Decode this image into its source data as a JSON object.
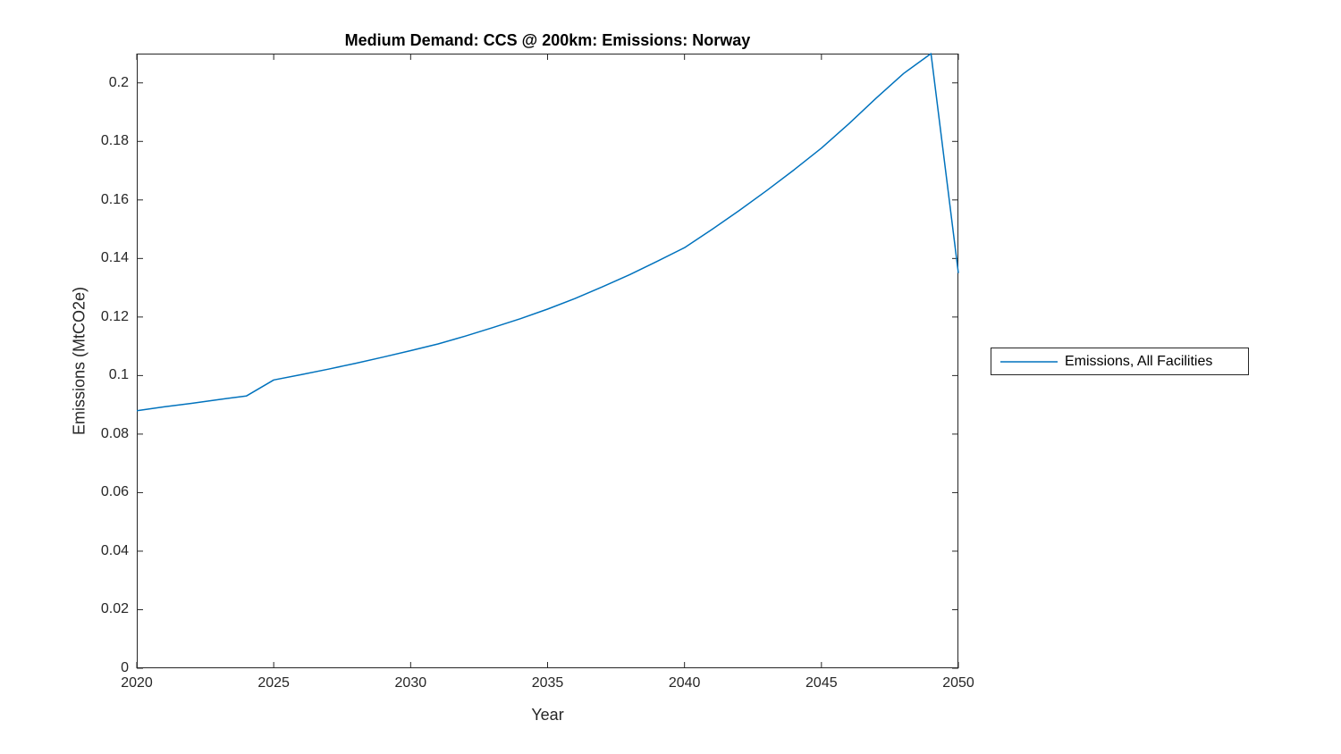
{
  "figure": {
    "background": "#ffffff",
    "axis_color": "#262626",
    "title_color": "#000000"
  },
  "chart_data": {
    "type": "line",
    "title": "Medium Demand: CCS @ 200km: Emissions: Norway",
    "xlabel": "Year",
    "ylabel": "Emissions (MtCO2e)",
    "xlim": [
      2020,
      2050
    ],
    "ylim": [
      0,
      0.21
    ],
    "grid": false,
    "xticks": [
      "2020",
      "2025",
      "2030",
      "2035",
      "2040",
      "2045",
      "2050"
    ],
    "xtick_values": [
      2020,
      2025,
      2030,
      2035,
      2040,
      2045,
      2050
    ],
    "yticks": [
      "0",
      "0.02",
      "0.04",
      "0.06",
      "0.08",
      "0.1",
      "0.12",
      "0.14",
      "0.16",
      "0.18",
      "0.2"
    ],
    "ytick_values": [
      0,
      0.02,
      0.04,
      0.06,
      0.08,
      0.1,
      0.12,
      0.14,
      0.16,
      0.18,
      0.2
    ],
    "legend": {
      "position": "right-outside",
      "entries": [
        "Emissions, All Facilities"
      ]
    },
    "series": [
      {
        "name": "Emissions, All Facilities",
        "color": "#0072BD",
        "x": [
          2020,
          2021,
          2022,
          2023,
          2024,
          2025,
          2026,
          2027,
          2028,
          2029,
          2030,
          2031,
          2032,
          2033,
          2034,
          2035,
          2036,
          2037,
          2038,
          2039,
          2040,
          2041,
          2042,
          2043,
          2044,
          2045,
          2046,
          2047,
          2048,
          2049,
          2050
        ],
        "y": [
          0.088,
          0.0893,
          0.0905,
          0.0918,
          0.093,
          0.0985,
          0.1003,
          0.1022,
          0.1042,
          0.1063,
          0.1085,
          0.1108,
          0.1135,
          0.1164,
          0.1194,
          0.1227,
          0.1263,
          0.1303,
          0.1345,
          0.139,
          0.1437,
          0.1499,
          0.1564,
          0.1632,
          0.1703,
          0.1777,
          0.186,
          0.1948,
          0.2032,
          0.21,
          0.135
        ]
      }
    ]
  }
}
